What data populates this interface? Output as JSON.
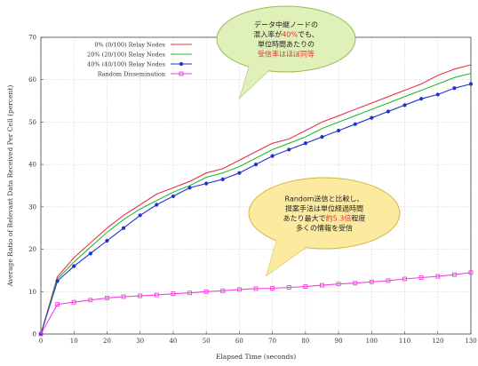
{
  "chart_data": {
    "type": "line",
    "xlabel": "Elapsed Time (seconds)",
    "ylabel": "Average Ratio of Relevant Data Received Per Cell (percent)",
    "xlim": [
      0,
      130
    ],
    "ylim": [
      0,
      70
    ],
    "xticks": [
      0,
      10,
      20,
      30,
      40,
      50,
      60,
      70,
      80,
      90,
      100,
      110,
      120,
      130
    ],
    "yticks": [
      0,
      10,
      20,
      30,
      40,
      50,
      60,
      70
    ],
    "grid": true,
    "legend_position": "top-left",
    "x": [
      0,
      5,
      10,
      15,
      20,
      25,
      30,
      35,
      40,
      45,
      50,
      55,
      60,
      65,
      70,
      75,
      80,
      85,
      90,
      95,
      100,
      105,
      110,
      115,
      120,
      125,
      130
    ],
    "series": [
      {
        "name": "0% (0/100) Relay Nodes",
        "color": "#e8334a",
        "marker": "none",
        "values": [
          0,
          13.5,
          18,
          21.5,
          25,
          28,
          30.5,
          33,
          34.5,
          36,
          38,
          39,
          41,
          43,
          45,
          46,
          48,
          50,
          51.5,
          53,
          54.5,
          56,
          57.5,
          59,
          61,
          62.5,
          63.5
        ]
      },
      {
        "name": "20% (20/100) Relay Nodes",
        "color": "#22bb33",
        "marker": "none",
        "values": [
          0,
          13,
          17,
          20.5,
          24,
          27,
          29.5,
          31.5,
          33.5,
          35,
          37,
          38,
          39.5,
          41.5,
          43.5,
          45,
          46.5,
          48.5,
          50,
          51.5,
          53,
          54.5,
          56,
          57.5,
          59,
          60.5,
          61.5
        ]
      },
      {
        "name": "40% (40/100) Relay Nodes",
        "color": "#2233cc",
        "marker": "dot",
        "values": [
          0,
          12.5,
          16,
          19,
          22,
          25,
          28,
          30.5,
          32.5,
          34.5,
          35.5,
          36.5,
          38,
          40,
          42,
          43.5,
          45,
          46.5,
          48,
          49.5,
          51,
          52.5,
          54,
          55.5,
          56.5,
          58,
          59
        ]
      },
      {
        "name": "Random Dissemination",
        "color": "#ee44dd",
        "marker": "square",
        "values": [
          0,
          7,
          7.5,
          8,
          8.5,
          8.8,
          9,
          9.2,
          9.5,
          9.7,
          10,
          10.2,
          10.5,
          10.7,
          10.8,
          11,
          11.2,
          11.5,
          11.8,
          12,
          12.3,
          12.6,
          13,
          13.3,
          13.6,
          14,
          14.5
        ]
      }
    ],
    "annotations": [
      {
        "lines": [
          [
            {
              "text": "データ中継ノードの",
              "color": "#222"
            }
          ],
          [
            {
              "text": "混入率が",
              "color": "#222"
            },
            {
              "text": "40%",
              "color": "#e83030"
            },
            {
              "text": "でも、",
              "color": "#222"
            }
          ],
          [
            {
              "text": "単位時間あたりの",
              "color": "#222"
            }
          ],
          [
            {
              "text": "受信率はほぼ同等",
              "color": "#e83030"
            }
          ]
        ]
      },
      {
        "lines": [
          [
            {
              "text": "Random送信と比較し、",
              "color": "#222"
            }
          ],
          [
            {
              "text": "提案手法は単位経過時間",
              "color": "#222"
            }
          ],
          [
            {
              "text": "あたり最大で",
              "color": "#222"
            },
            {
              "text": "約5.3倍",
              "color": "#e83030"
            },
            {
              "text": "程度",
              "color": "#222"
            }
          ],
          [
            {
              "text": "多くの情報を受信",
              "color": "#222"
            }
          ]
        ]
      }
    ]
  }
}
